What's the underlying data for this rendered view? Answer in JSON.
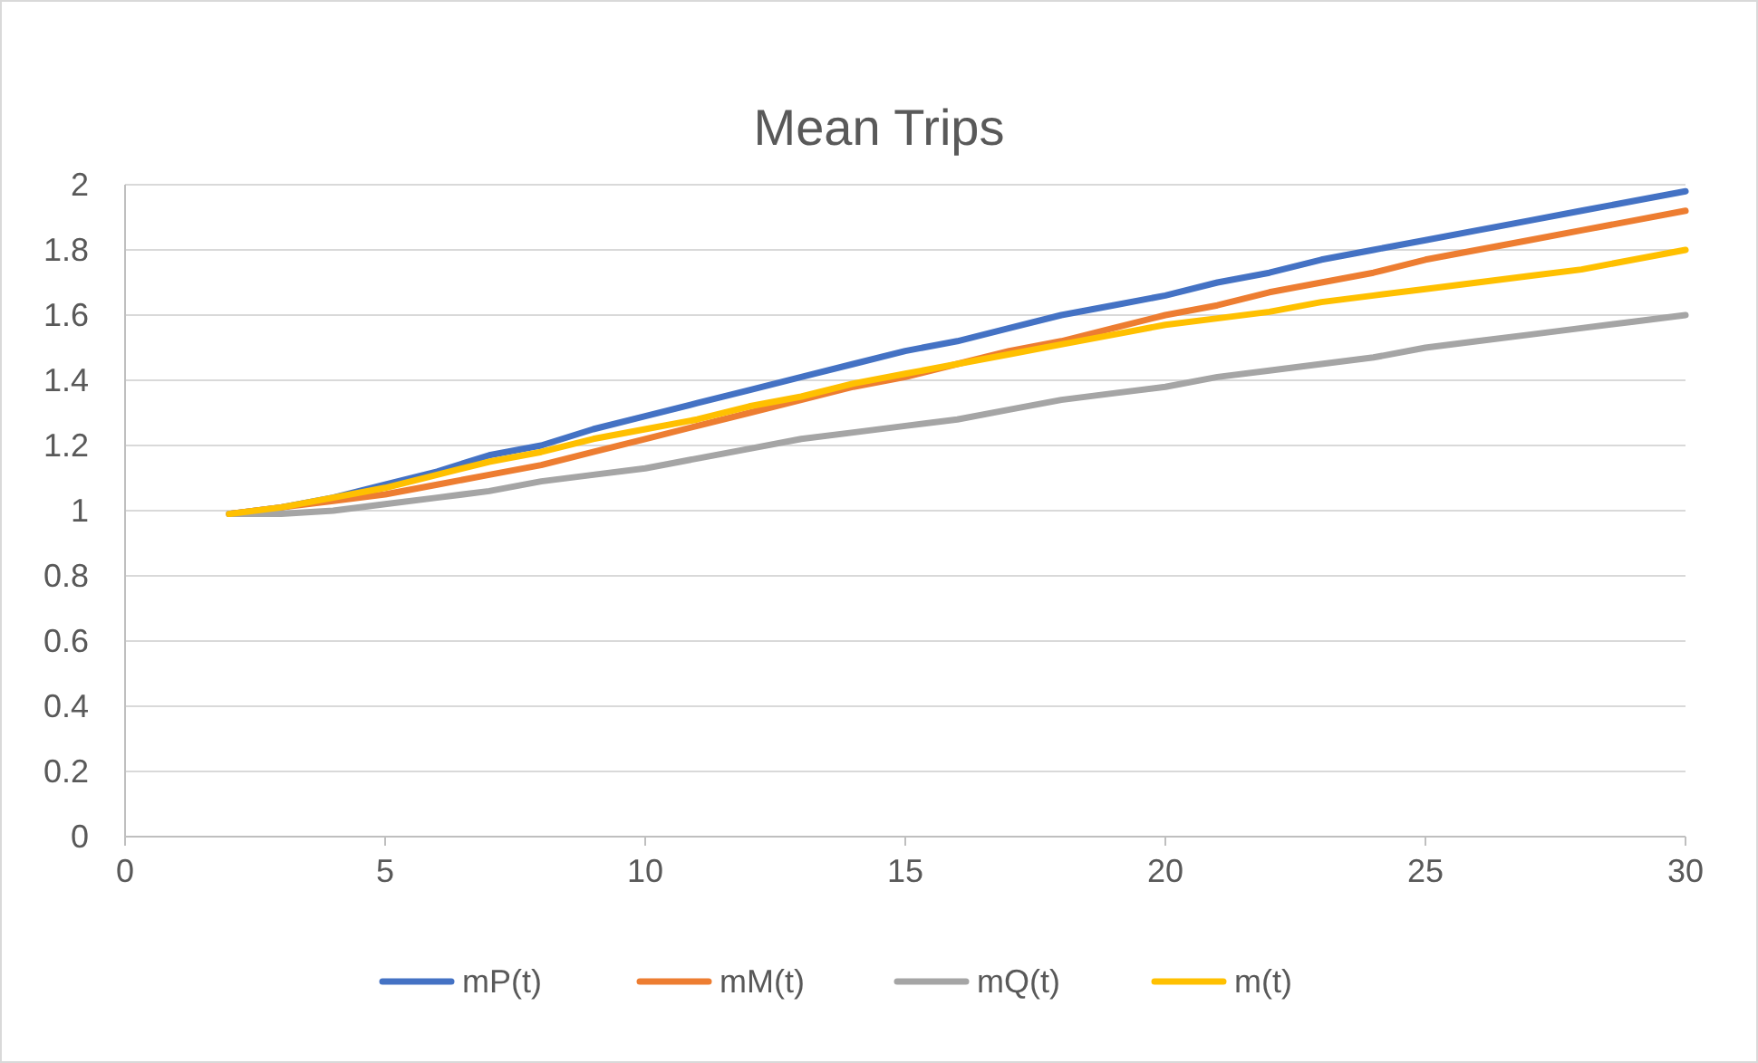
{
  "chart_data": {
    "type": "line",
    "title": "Mean Trips",
    "x": [
      2,
      3,
      4,
      5,
      6,
      7,
      8,
      9,
      10,
      11,
      12,
      13,
      14,
      15,
      16,
      17,
      18,
      19,
      20,
      21,
      22,
      23,
      24,
      25,
      26,
      27,
      28,
      29,
      30
    ],
    "series": [
      {
        "name": "mP(t)",
        "color": "#4472c4",
        "values": [
          0.99,
          1.01,
          1.04,
          1.08,
          1.12,
          1.17,
          1.2,
          1.25,
          1.29,
          1.33,
          1.37,
          1.41,
          1.45,
          1.49,
          1.52,
          1.56,
          1.6,
          1.63,
          1.66,
          1.7,
          1.73,
          1.77,
          1.8,
          1.83,
          1.86,
          1.89,
          1.92,
          1.95,
          1.98
        ]
      },
      {
        "name": "mM(t)",
        "color": "#ed7d31",
        "values": [
          0.99,
          1.01,
          1.03,
          1.05,
          1.08,
          1.11,
          1.14,
          1.18,
          1.22,
          1.26,
          1.3,
          1.34,
          1.38,
          1.41,
          1.45,
          1.49,
          1.52,
          1.56,
          1.6,
          1.63,
          1.67,
          1.7,
          1.73,
          1.77,
          1.8,
          1.83,
          1.86,
          1.89,
          1.92
        ]
      },
      {
        "name": "mQ(t)",
        "color": "#a5a5a5",
        "values": [
          0.99,
          0.99,
          1.0,
          1.02,
          1.04,
          1.06,
          1.09,
          1.11,
          1.13,
          1.16,
          1.19,
          1.22,
          1.24,
          1.26,
          1.28,
          1.31,
          1.34,
          1.36,
          1.38,
          1.41,
          1.43,
          1.45,
          1.47,
          1.5,
          1.52,
          1.54,
          1.56,
          1.58,
          1.6
        ]
      },
      {
        "name": "m(t)",
        "color": "#ffc000",
        "values": [
          0.99,
          1.01,
          1.04,
          1.07,
          1.11,
          1.15,
          1.18,
          1.22,
          1.25,
          1.28,
          1.32,
          1.35,
          1.39,
          1.42,
          1.45,
          1.48,
          1.51,
          1.54,
          1.57,
          1.59,
          1.61,
          1.64,
          1.66,
          1.68,
          1.7,
          1.72,
          1.74,
          1.77,
          1.8
        ]
      }
    ],
    "xlim": [
      0,
      30
    ],
    "xticks": [
      0,
      5,
      10,
      15,
      20,
      25,
      30
    ],
    "ylim": [
      0,
      2
    ],
    "yticks": [
      0,
      {
        "value": 0.2,
        "label": "0.2"
      },
      {
        "value": 0.4,
        "label": "0.4"
      },
      {
        "value": 0.6,
        "label": "0.6"
      },
      {
        "value": 0.8,
        "label": "0.8"
      },
      1,
      {
        "value": 1.2,
        "label": "1.2"
      },
      {
        "value": 1.4,
        "label": "1.4"
      },
      {
        "value": 1.6,
        "label": "1.6"
      },
      {
        "value": 1.8,
        "label": "1.8"
      },
      2
    ],
    "grid": "y",
    "legend": "bottom",
    "marker": "none",
    "line_style": "solid"
  }
}
